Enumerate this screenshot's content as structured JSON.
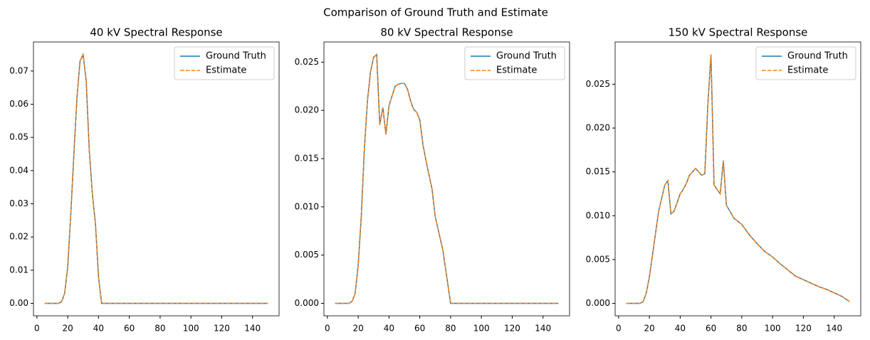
{
  "title": "Comparison of Ground Truth and Estimate",
  "chart_data": [
    {
      "type": "line",
      "title": "40 kV Spectral Response",
      "legend": "upper right",
      "x": [
        5,
        10,
        14,
        16,
        18,
        20,
        22,
        24,
        26,
        28,
        30,
        32,
        34,
        36,
        38,
        40,
        42,
        44,
        46,
        48,
        50,
        52,
        54,
        56,
        58,
        60,
        62,
        64,
        66,
        68,
        70,
        75,
        80,
        85,
        90,
        95,
        100,
        105,
        110,
        115,
        120,
        125,
        130,
        135,
        140,
        145,
        150
      ],
      "series": [
        {
          "name": "Ground Truth",
          "color": "#1f77b4",
          "dash": false,
          "values": [
            0,
            0,
            0,
            0.0005,
            0.003,
            0.011,
            0.027,
            0.045,
            0.062,
            0.073,
            0.075,
            0.067,
            0.046,
            0.033,
            0.024,
            0.008,
            0,
            0,
            0,
            0,
            0,
            0,
            0,
            0,
            0,
            0,
            0,
            0,
            0,
            0,
            0,
            0,
            0,
            0,
            0,
            0,
            0,
            0,
            0,
            0,
            0,
            0,
            0,
            0,
            0,
            0,
            0
          ]
        },
        {
          "name": "Estimate",
          "color": "#ff7f0e",
          "dash": true,
          "values": [
            0,
            0,
            0,
            0.0005,
            0.003,
            0.011,
            0.027,
            0.045,
            0.062,
            0.073,
            0.075,
            0.067,
            0.046,
            0.033,
            0.024,
            0.008,
            0,
            0,
            0,
            0,
            0,
            0,
            0,
            0,
            0,
            0,
            0,
            0,
            0,
            0,
            0,
            0,
            0,
            0,
            0,
            0,
            0,
            0,
            0,
            0,
            0,
            0,
            0,
            0,
            0,
            0,
            0
          ]
        }
      ],
      "xlim": [
        -2.25,
        157.25
      ],
      "xticks": [
        0,
        20,
        40,
        60,
        80,
        100,
        120,
        140
      ],
      "ylim": [
        -0.00375,
        0.07875
      ],
      "yticks": [
        {
          "value": 0,
          "label": "0.00"
        },
        {
          "value": 0.01,
          "label": "0.01"
        },
        {
          "value": 0.02,
          "label": "0.02"
        },
        {
          "value": 0.03,
          "label": "0.03"
        },
        {
          "value": 0.04,
          "label": "0.04"
        },
        {
          "value": 0.05,
          "label": "0.05"
        },
        {
          "value": 0.06,
          "label": "0.06"
        },
        {
          "value": 0.07,
          "label": "0.07"
        }
      ]
    },
    {
      "type": "line",
      "title": "80 kV Spectral Response",
      "legend": "upper right",
      "x": [
        5,
        10,
        14,
        16,
        18,
        20,
        22,
        24,
        26,
        28,
        30,
        32,
        34,
        36,
        38,
        40,
        42,
        44,
        46,
        48,
        50,
        52,
        54,
        56,
        58,
        60,
        62,
        64,
        66,
        68,
        70,
        75,
        80,
        85,
        90,
        95,
        100,
        105,
        110,
        115,
        120,
        125,
        130,
        135,
        140,
        145,
        150
      ],
      "series": [
        {
          "name": "Ground Truth",
          "color": "#1f77b4",
          "dash": false,
          "values": [
            0,
            0,
            0,
            0.0002,
            0.001,
            0.004,
            0.009,
            0.016,
            0.021,
            0.024,
            0.0255,
            0.0258,
            0.0185,
            0.0203,
            0.0175,
            0.0205,
            0.0215,
            0.0225,
            0.0227,
            0.0228,
            0.0228,
            0.0222,
            0.021,
            0.0201,
            0.0198,
            0.019,
            0.0165,
            0.0148,
            0.0133,
            0.0118,
            0.009,
            0.0055,
            0,
            0,
            0,
            0,
            0,
            0,
            0,
            0,
            0,
            0,
            0,
            0,
            0,
            0,
            0
          ]
        },
        {
          "name": "Estimate",
          "color": "#ff7f0e",
          "dash": true,
          "values": [
            0,
            0,
            0,
            0.0002,
            0.001,
            0.004,
            0.009,
            0.016,
            0.021,
            0.024,
            0.0255,
            0.0258,
            0.0185,
            0.0203,
            0.0175,
            0.0205,
            0.0215,
            0.0225,
            0.0227,
            0.0228,
            0.0228,
            0.0222,
            0.021,
            0.0201,
            0.0198,
            0.019,
            0.0165,
            0.0148,
            0.0133,
            0.0118,
            0.009,
            0.0055,
            0,
            0,
            0,
            0,
            0,
            0,
            0,
            0,
            0,
            0,
            0,
            0,
            0,
            0,
            0
          ]
        }
      ],
      "xlim": [
        -2.25,
        157.25
      ],
      "xticks": [
        0,
        20,
        40,
        60,
        80,
        100,
        120,
        140
      ],
      "ylim": [
        -0.00129,
        0.02709
      ],
      "yticks": [
        {
          "value": 0,
          "label": "0.000"
        },
        {
          "value": 0.005,
          "label": "0.005"
        },
        {
          "value": 0.01,
          "label": "0.010"
        },
        {
          "value": 0.015,
          "label": "0.015"
        },
        {
          "value": 0.02,
          "label": "0.020"
        },
        {
          "value": 0.025,
          "label": "0.025"
        }
      ]
    },
    {
      "type": "line",
      "title": "150 kV Spectral Response",
      "legend": "upper right",
      "x": [
        5,
        10,
        14,
        16,
        18,
        20,
        22,
        24,
        26,
        28,
        30,
        32,
        34,
        36,
        38,
        40,
        42,
        44,
        46,
        48,
        50,
        52,
        54,
        56,
        58,
        60,
        62,
        64,
        66,
        68,
        70,
        75,
        80,
        85,
        90,
        95,
        100,
        105,
        110,
        115,
        120,
        125,
        130,
        135,
        140,
        145,
        150
      ],
      "series": [
        {
          "name": "Ground Truth",
          "color": "#1f77b4",
          "dash": false,
          "values": [
            0,
            0,
            0,
            0.0002,
            0.0012,
            0.003,
            0.0055,
            0.008,
            0.0105,
            0.012,
            0.0135,
            0.014,
            0.0102,
            0.0105,
            0.0115,
            0.0125,
            0.013,
            0.0137,
            0.0146,
            0.015,
            0.0154,
            0.015,
            0.0146,
            0.0148,
            0.0228,
            0.0284,
            0.0135,
            0.013,
            0.0125,
            0.0163,
            0.0112,
            0.0097,
            0.009,
            0.0078,
            0.0068,
            0.0059,
            0.0053,
            0.0045,
            0.0038,
            0.0031,
            0.0027,
            0.0023,
            0.0019,
            0.0016,
            0.0012,
            0.0008,
            0.0002
          ]
        },
        {
          "name": "Estimate",
          "color": "#ff7f0e",
          "dash": true,
          "values": [
            0,
            0,
            0,
            0.0002,
            0.0012,
            0.003,
            0.0055,
            0.008,
            0.0105,
            0.012,
            0.0135,
            0.014,
            0.0102,
            0.0105,
            0.0115,
            0.0125,
            0.013,
            0.0137,
            0.0146,
            0.015,
            0.0154,
            0.015,
            0.0146,
            0.0148,
            0.0228,
            0.0284,
            0.0135,
            0.013,
            0.0125,
            0.0163,
            0.0112,
            0.0097,
            0.009,
            0.0078,
            0.0068,
            0.0059,
            0.0053,
            0.0045,
            0.0038,
            0.0031,
            0.0027,
            0.0023,
            0.0019,
            0.0016,
            0.0012,
            0.0008,
            0.0002
          ]
        }
      ],
      "xlim": [
        -2.25,
        157.25
      ],
      "xticks": [
        0,
        20,
        40,
        60,
        80,
        100,
        120,
        140
      ],
      "ylim": [
        -0.00142,
        0.02982
      ],
      "yticks": [
        {
          "value": 0,
          "label": "0.000"
        },
        {
          "value": 0.005,
          "label": "0.005"
        },
        {
          "value": 0.01,
          "label": "0.010"
        },
        {
          "value": 0.015,
          "label": "0.015"
        },
        {
          "value": 0.02,
          "label": "0.020"
        },
        {
          "value": 0.025,
          "label": "0.025"
        }
      ]
    }
  ]
}
